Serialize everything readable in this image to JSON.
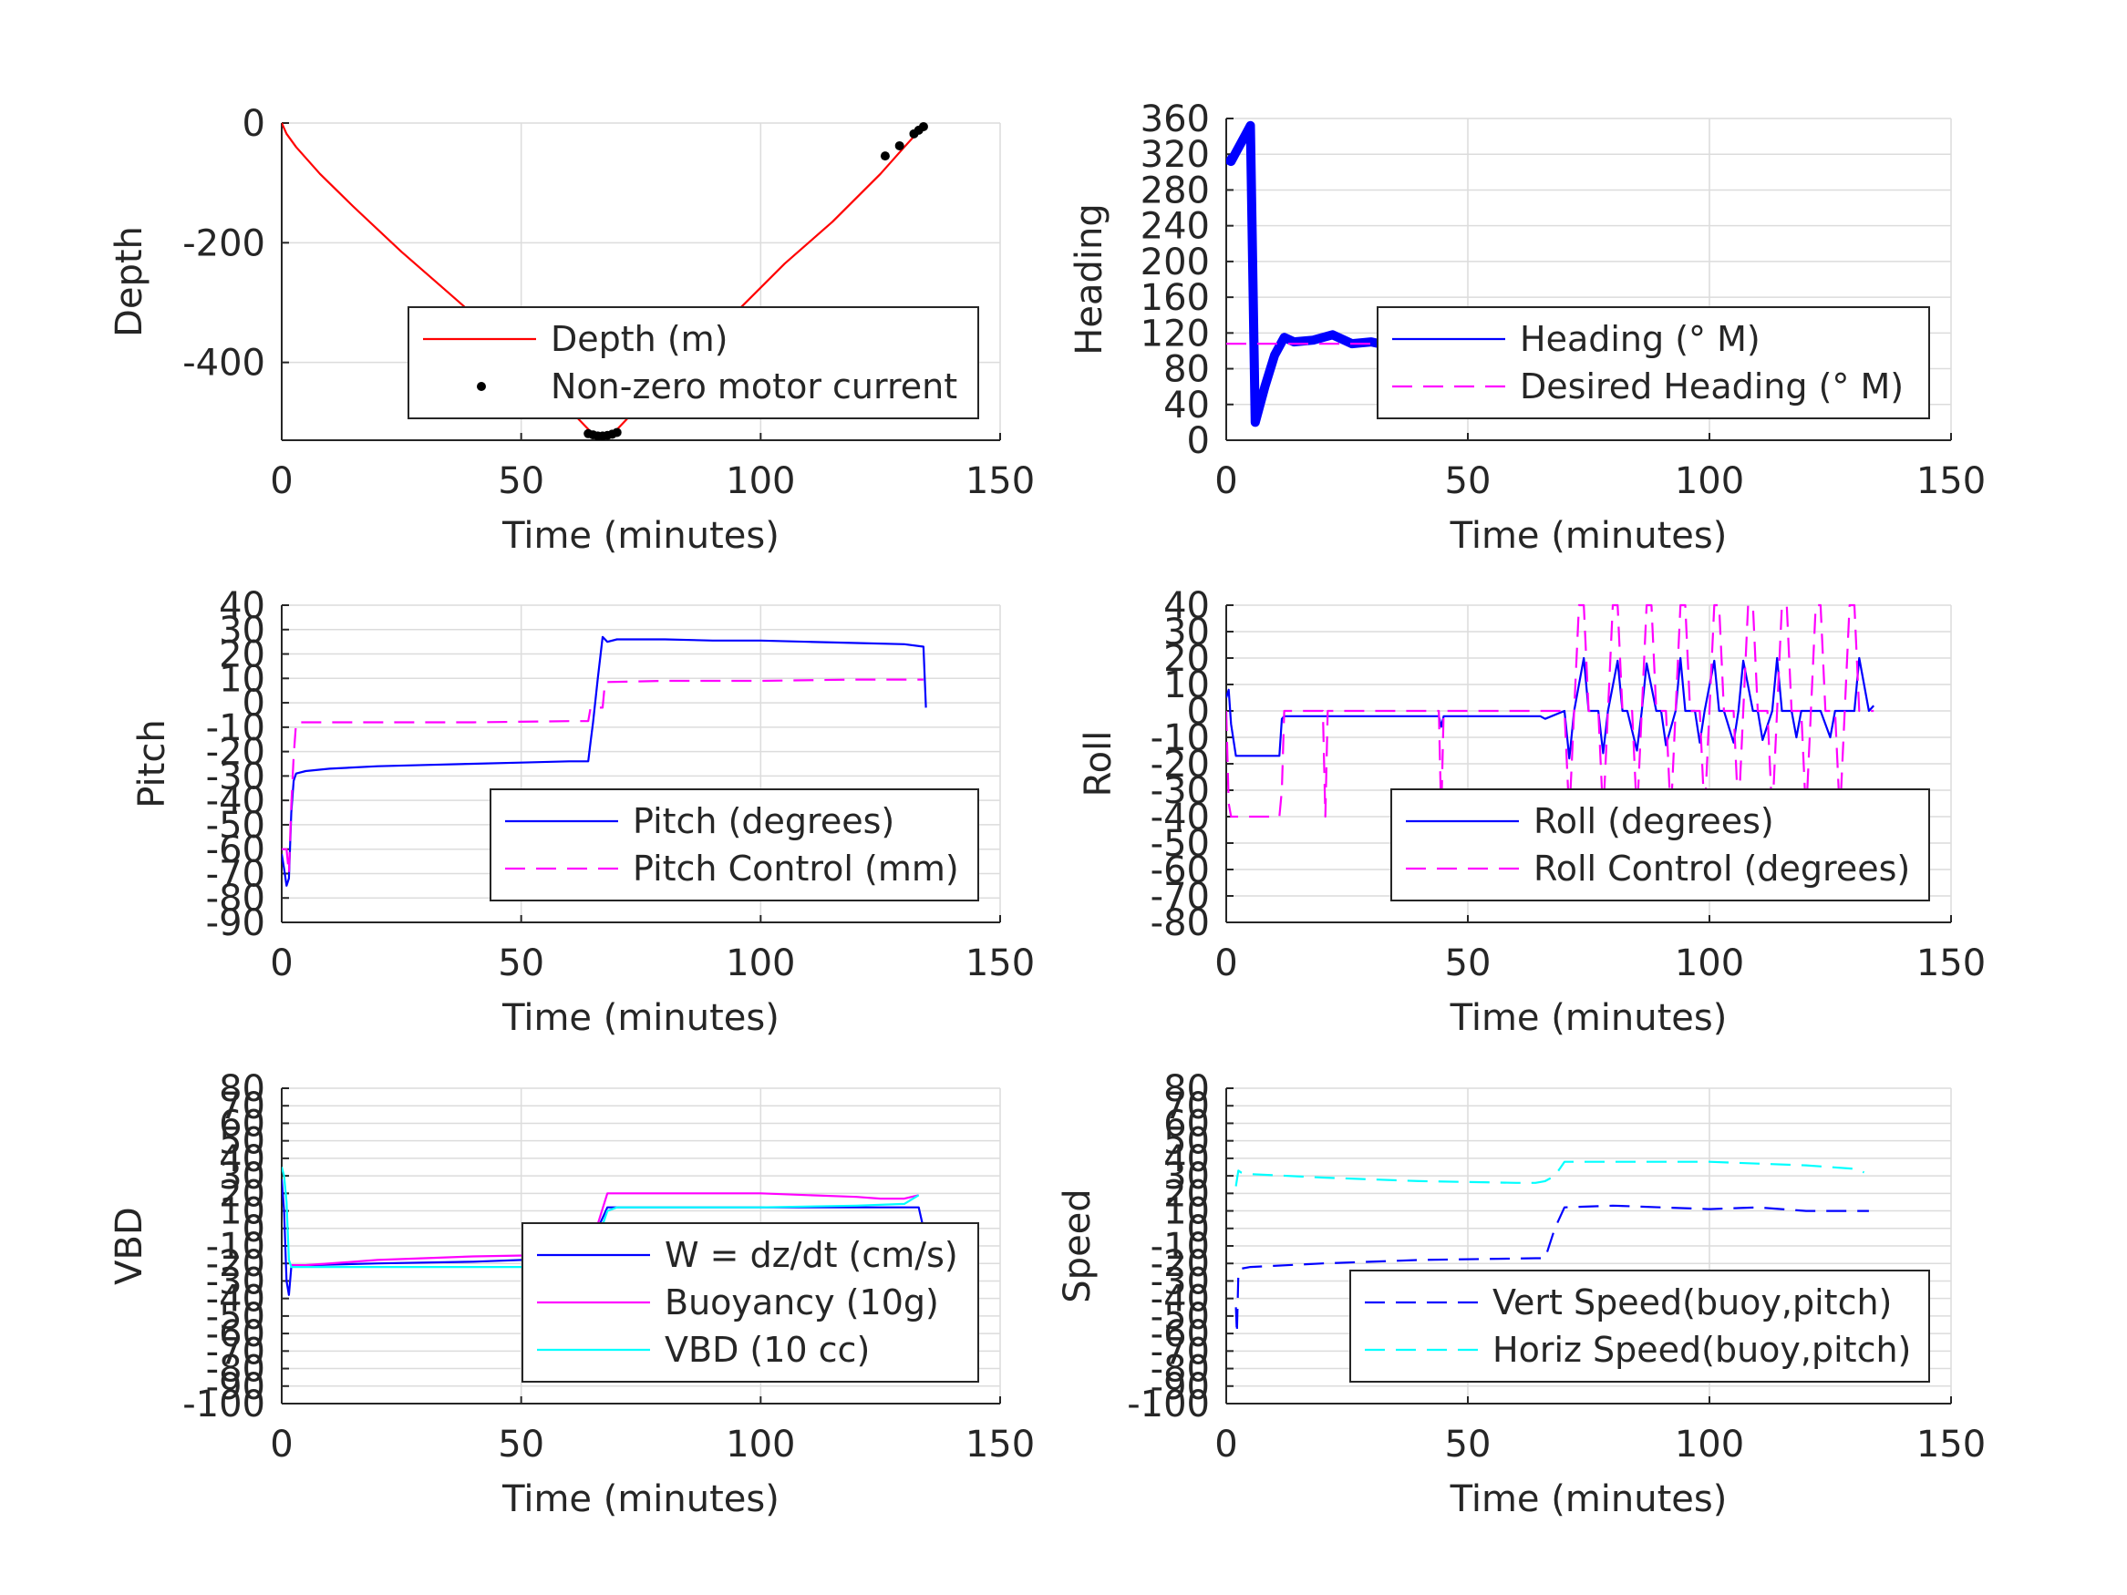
{
  "chart_data": [
    {
      "type": "line",
      "xlabel": "Time (minutes)",
      "ylabel": "Depth",
      "xlim": [
        0,
        150
      ],
      "ylim": [
        -530,
        0
      ],
      "xticks": [
        0,
        50,
        100,
        150
      ],
      "yticks": [
        0,
        -200,
        -400
      ],
      "legend_position": "bottom-right",
      "grid": true,
      "series": [
        {
          "name": "Depth (m)",
          "color": "#ff0000",
          "style": "solid",
          "x": [
            0,
            1,
            3,
            8,
            15,
            25,
            35,
            45,
            55,
            62,
            65,
            67,
            70,
            75,
            85,
            95,
            105,
            115,
            125,
            130,
            134
          ],
          "y": [
            0,
            -18,
            -40,
            -85,
            -140,
            -215,
            -285,
            -355,
            -435,
            -495,
            -520,
            -525,
            -512,
            -470,
            -395,
            -315,
            -235,
            -165,
            -85,
            -40,
            -5
          ]
        },
        {
          "name": "Non-zero motor current",
          "color": "#000000",
          "style": "marker",
          "x": [
            64,
            65,
            66,
            67,
            68,
            69,
            70,
            126,
            129,
            132,
            133,
            134
          ],
          "y": [
            -519,
            -521,
            -523,
            -523,
            -522,
            -520,
            -517,
            -55,
            -38,
            -18,
            -12,
            -6
          ]
        }
      ]
    },
    {
      "type": "line",
      "xlabel": "Time (minutes)",
      "ylabel": "Heading",
      "xlim": [
        0,
        150
      ],
      "ylim": [
        0,
        360
      ],
      "xticks": [
        0,
        50,
        100,
        150
      ],
      "yticks": [
        0,
        40,
        80,
        120,
        160,
        200,
        240,
        280,
        320,
        360
      ],
      "legend_position": "bottom-right",
      "grid": true,
      "series": [
        {
          "name": "Heading (° M)",
          "color": "#0000ff",
          "style": "thick",
          "x": [
            0,
            1,
            2,
            3,
            4,
            5,
            6,
            8,
            10,
            12,
            14,
            18,
            22,
            26,
            30,
            35,
            40,
            45,
            50,
            55,
            60,
            65,
            67,
            70,
            75,
            80,
            85,
            90,
            95,
            100,
            105,
            110,
            115,
            120,
            125,
            130,
            135
          ],
          "y": [
            315,
            312,
            322,
            332,
            342,
            352,
            20,
            60,
            95,
            115,
            110,
            112,
            118,
            108,
            110,
            104,
            100,
            103,
            113,
            116,
            120,
            122,
            140,
            112,
            100,
            120,
            95,
            125,
            90,
            120,
            95,
            122,
            92,
            118,
            96,
            115,
            110
          ]
        },
        {
          "name": "Desired Heading (° M)",
          "color": "#ff00ff",
          "style": "dashed",
          "x": [
            0,
            135
          ],
          "y": [
            108,
            108
          ]
        }
      ]
    },
    {
      "type": "line",
      "xlabel": "Time (minutes)",
      "ylabel": "Pitch",
      "xlim": [
        0,
        150
      ],
      "ylim": [
        -90,
        40
      ],
      "xticks": [
        0,
        50,
        100,
        150
      ],
      "yticks": [
        40,
        30,
        20,
        10,
        0,
        -10,
        -20,
        -30,
        -40,
        -50,
        -60,
        -70,
        -80,
        -90
      ],
      "legend_position": "bottom-right",
      "grid": true,
      "series": [
        {
          "name": "Pitch (degrees)",
          "color": "#0000ff",
          "style": "solid",
          "x": [
            0,
            0.5,
            1,
            1.5,
            2,
            2.5,
            3,
            5,
            10,
            20,
            30,
            40,
            50,
            60,
            64,
            64.5,
            65,
            66,
            67,
            68,
            70,
            80,
            90,
            100,
            110,
            120,
            130,
            134,
            134.5
          ],
          "y": [
            -62,
            -68,
            -75,
            -72,
            -45,
            -32,
            -29,
            -28,
            -27,
            -26,
            -25.5,
            -25,
            -24.5,
            -24,
            -24,
            -16,
            -8,
            10,
            27,
            25,
            26,
            26,
            25.5,
            25.5,
            25,
            24.5,
            24,
            23,
            -2
          ]
        },
        {
          "name": "Pitch Control (mm)",
          "color": "#ff00ff",
          "style": "dashed",
          "x": [
            0,
            1,
            1.5,
            2,
            2.5,
            3,
            5,
            20,
            40,
            60,
            64,
            64.5,
            65,
            66,
            67,
            67.5,
            68,
            80,
            100,
            120,
            134
          ],
          "y": [
            -60,
            -60,
            -70,
            -42,
            -22,
            -8,
            -8,
            -8,
            -8,
            -7.5,
            -7.5,
            -2,
            -2,
            -2,
            -2,
            8.5,
            8.5,
            9,
            9,
            9.5,
            9.5
          ]
        }
      ]
    },
    {
      "type": "line",
      "xlabel": "Time (minutes)",
      "ylabel": "Roll",
      "xlim": [
        0,
        150
      ],
      "ylim": [
        -80,
        40
      ],
      "xticks": [
        0,
        50,
        100,
        150
      ],
      "yticks": [
        40,
        30,
        20,
        10,
        0,
        -10,
        -20,
        -30,
        -40,
        -50,
        -60,
        -70,
        -80
      ],
      "legend_position": "bottom-right",
      "grid": true,
      "series": [
        {
          "name": "Roll (degrees)",
          "color": "#0000ff",
          "style": "solid",
          "x": [
            0,
            0.5,
            1,
            2,
            10,
            11,
            11.5,
            12,
            19,
            20,
            20.5,
            21,
            43,
            44,
            44.5,
            45,
            65,
            66,
            70,
            71,
            72,
            74,
            75,
            77,
            78,
            79,
            81,
            82,
            83,
            85,
            86,
            87,
            89,
            90,
            91,
            93,
            94,
            95,
            97,
            98,
            99,
            101,
            102,
            103,
            105,
            106,
            107,
            109,
            110,
            111,
            113,
            114,
            115,
            117,
            118,
            119,
            121,
            122,
            123,
            125,
            126,
            127,
            129,
            130,
            131,
            133,
            134
          ],
          "y": [
            5,
            8,
            -5,
            -17,
            -17,
            -17,
            -3,
            -2,
            -2,
            -2,
            -2,
            -2,
            -2,
            -2,
            -6,
            -2,
            -2,
            -3,
            0,
            -18,
            0,
            20,
            0,
            0,
            -16,
            0,
            19,
            0,
            0,
            -15,
            0,
            18,
            0,
            0,
            -13,
            0,
            20,
            0,
            0,
            -12,
            0,
            19,
            0,
            0,
            -12,
            0,
            19,
            0,
            0,
            -11,
            0,
            20,
            0,
            0,
            -10,
            0,
            0,
            0,
            0,
            -10,
            0,
            0,
            0,
            0,
            20,
            0,
            2
          ]
        },
        {
          "name": "Roll Control (degrees)",
          "color": "#ff00ff",
          "style": "dashed",
          "x": [
            0,
            0.5,
            1,
            1.5,
            2,
            10,
            11,
            11.5,
            12,
            12.5,
            19,
            20,
            20.5,
            21,
            43,
            44,
            44.5,
            45,
            65,
            66,
            70,
            71,
            72,
            73,
            74,
            75,
            77,
            78,
            79,
            80,
            81,
            82,
            84,
            85,
            86,
            87,
            88,
            89,
            91,
            92,
            93,
            94,
            95,
            96,
            98,
            99,
            100,
            101,
            102,
            103,
            105,
            106,
            107,
            108,
            109,
            110,
            112,
            113,
            114,
            115,
            116,
            117,
            119,
            120,
            121,
            122,
            123,
            124,
            126,
            127,
            128,
            129,
            130,
            131,
            134
          ],
          "y": [
            0,
            -35,
            -40,
            -40,
            -40,
            -40,
            -40,
            -30,
            0,
            0,
            0,
            0,
            -40,
            0,
            0,
            0,
            -40,
            0,
            0,
            0,
            0,
            -40,
            0,
            40,
            40,
            0,
            0,
            -40,
            0,
            40,
            40,
            0,
            0,
            -40,
            0,
            40,
            40,
            0,
            0,
            -40,
            0,
            40,
            40,
            0,
            0,
            -40,
            0,
            40,
            40,
            0,
            0,
            -40,
            0,
            40,
            40,
            0,
            0,
            -40,
            0,
            40,
            40,
            0,
            0,
            -40,
            0,
            40,
            40,
            0,
            0,
            -40,
            0,
            40,
            40,
            0,
            0
          ]
        }
      ]
    },
    {
      "type": "line",
      "xlabel": "Time (minutes)",
      "ylabel": "VBD",
      "xlim": [
        0,
        150
      ],
      "ylim": [
        -100,
        80
      ],
      "xticks": [
        0,
        50,
        100,
        150
      ],
      "yticks": [
        80,
        70,
        60,
        50,
        40,
        30,
        20,
        10,
        0,
        -10,
        -20,
        -30,
        -40,
        -50,
        -60,
        -70,
        -80,
        -90,
        -100
      ],
      "legend_position": "bottom-right",
      "grid": true,
      "series": [
        {
          "name": "W = dz/dt (cm/s)",
          "color": "#0000ff",
          "style": "solid",
          "x": [
            0,
            0.5,
            1,
            1.5,
            2,
            3,
            5,
            20,
            40,
            60,
            64,
            66,
            68,
            70,
            80,
            100,
            120,
            133,
            134
          ],
          "y": [
            28,
            10,
            -30,
            -38,
            -22,
            -21,
            -21,
            -20,
            -19,
            -17,
            -17,
            0,
            12,
            12,
            12,
            12,
            12,
            12,
            0
          ]
        },
        {
          "name": "Buoyancy (10g)",
          "color": "#ff00ff",
          "style": "solid",
          "x": [
            2,
            5,
            20,
            40,
            60,
            64,
            68,
            70,
            80,
            100,
            110,
            120,
            125,
            130,
            133
          ],
          "y": [
            -21,
            -21,
            -18,
            -16,
            -15,
            -15,
            20,
            20,
            20,
            20,
            19,
            18,
            17,
            17,
            19
          ]
        },
        {
          "name": "VBD (10 cc)",
          "color": "#00ffff",
          "style": "solid",
          "x": [
            0,
            0.5,
            1,
            1.5,
            2,
            5,
            20,
            40,
            60,
            64,
            68,
            70,
            80,
            100,
            120,
            130,
            133
          ],
          "y": [
            35,
            30,
            15,
            -18,
            -22,
            -22,
            -22,
            -22,
            -22,
            -22,
            10,
            12,
            12,
            12,
            13,
            14,
            19
          ]
        }
      ]
    },
    {
      "type": "line",
      "xlabel": "Time (minutes)",
      "ylabel": "Speed",
      "xlim": [
        0,
        150
      ],
      "ylim": [
        -100,
        80
      ],
      "xticks": [
        0,
        50,
        100,
        150
      ],
      "yticks": [
        80,
        70,
        60,
        50,
        40,
        30,
        20,
        10,
        0,
        -10,
        -20,
        -30,
        -40,
        -50,
        -60,
        -70,
        -80,
        -90,
        -100
      ],
      "legend_position": "bottom-right",
      "grid": true,
      "series": [
        {
          "name": "Vert Speed(buoy,pitch)",
          "color": "#0000ff",
          "style": "dashed",
          "x": [
            2,
            2.2,
            2.5,
            3,
            5,
            20,
            40,
            64,
            66,
            68,
            70,
            80,
            90,
            100,
            110,
            120,
            130,
            133
          ],
          "y": [
            -45,
            -60,
            -26,
            -23,
            -22,
            -20,
            -18,
            -17,
            -17,
            0,
            12,
            13,
            12,
            11,
            12,
            10,
            10,
            10
          ]
        },
        {
          "name": "Horiz Speed(buoy,pitch)",
          "color": "#00ffff",
          "style": "dashed",
          "x": [
            2,
            2.5,
            3,
            5,
            20,
            40,
            60,
            64,
            66,
            68,
            70,
            80,
            90,
            100,
            110,
            120,
            130,
            132
          ],
          "y": [
            24,
            33,
            32,
            31,
            29,
            27,
            26,
            26,
            27,
            30,
            38,
            38,
            38,
            38,
            37,
            36,
            34,
            32
          ]
        }
      ]
    }
  ]
}
